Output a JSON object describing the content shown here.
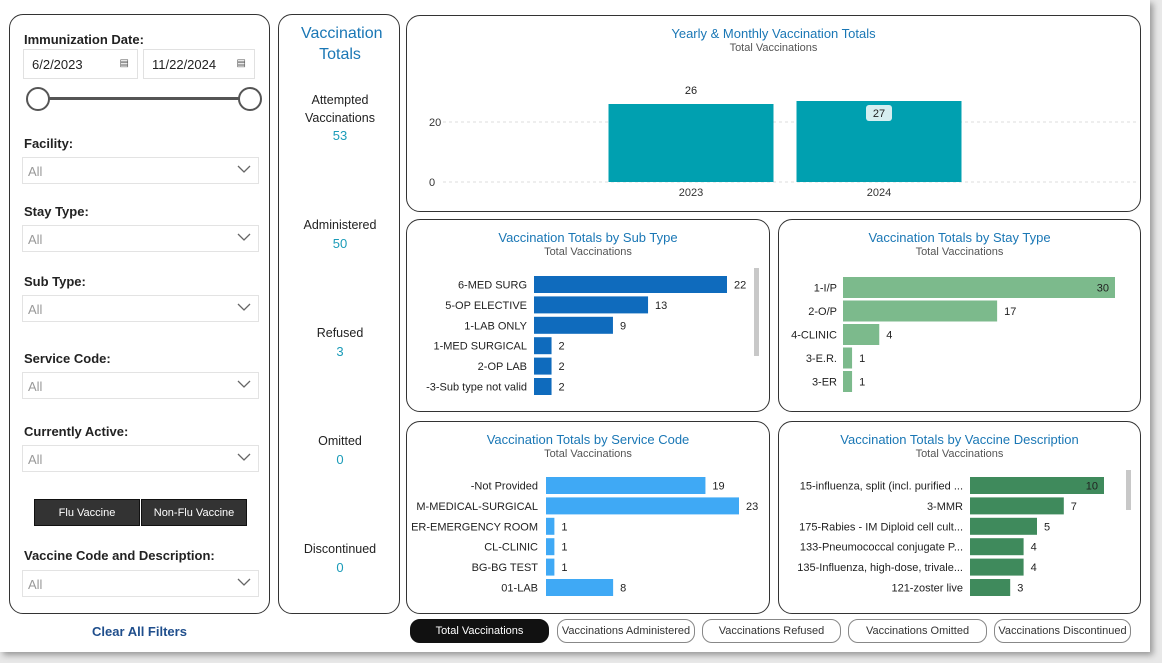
{
  "filters": {
    "immunization_date": {
      "label": "Immunization Date:",
      "start": "6/2/2023",
      "end": "11/22/2024"
    },
    "facility": {
      "label": "Facility:",
      "value": "All"
    },
    "stay_type": {
      "label": "Stay Type:",
      "value": "All"
    },
    "sub_type": {
      "label": "Sub Type:",
      "value": "All"
    },
    "service_code": {
      "label": "Service Code:",
      "value": "All"
    },
    "currently_active": {
      "label": "Currently Active:",
      "value": "All"
    },
    "flu_vaccine_label": "Flu Vaccine",
    "non_flu_vaccine_label": "Non-Flu Vaccine",
    "vaccine_code": {
      "label": "Vaccine Code and Description:",
      "value": "All"
    },
    "clear_all_label": "Clear All Filters"
  },
  "totals": {
    "title": "Vaccination Totals",
    "attempted": {
      "label": "Attempted Vaccinations",
      "value": "53"
    },
    "administered": {
      "label": "Administered",
      "value": "50"
    },
    "refused": {
      "label": "Refused",
      "value": "3"
    },
    "omitted": {
      "label": "Omitted",
      "value": "0"
    },
    "discontinued": {
      "label": "Discontinued",
      "value": "0"
    }
  },
  "tabs": [
    {
      "label": "Total Vaccinations",
      "active": true
    },
    {
      "label": "Vaccinations Administered",
      "active": false
    },
    {
      "label": "Vaccinations Refused",
      "active": false
    },
    {
      "label": "Vaccinations Omitted",
      "active": false
    },
    {
      "label": "Vaccinations Discontinued",
      "active": false
    }
  ],
  "chart_data": [
    {
      "type": "bar",
      "title": "Yearly & Monthly Vaccination Totals",
      "subtitle": "Total Vaccinations",
      "categories": [
        "2023",
        "2024"
      ],
      "values": [
        26,
        27
      ],
      "ylim": [
        0,
        30
      ],
      "yticks": [
        0,
        20
      ],
      "highlight_label": "27",
      "color": "#00a0b0"
    },
    {
      "type": "bar",
      "orientation": "horizontal",
      "title": "Vaccination Totals by Sub Type",
      "subtitle": "Total Vaccinations",
      "categories": [
        "6-MED SURG",
        "5-OP ELECTIVE",
        "1-LAB ONLY",
        "1-MED SURGICAL",
        "2-OP LAB",
        "-3-Sub type not valid"
      ],
      "values": [
        22,
        13,
        9,
        2,
        2,
        2
      ],
      "xmax": 22,
      "color": "#0f6bbd"
    },
    {
      "type": "bar",
      "orientation": "horizontal",
      "title": "Vaccination Totals by Stay Type",
      "subtitle": "Total Vaccinations",
      "categories": [
        "1-I/P",
        "2-O/P",
        "4-CLINIC",
        "3-E.R.",
        "3-ER"
      ],
      "values": [
        30,
        17,
        4,
        1,
        1
      ],
      "xmax": 30,
      "color": "#7cba8c"
    },
    {
      "type": "bar",
      "orientation": "horizontal",
      "title": "Vaccination Totals by Service Code",
      "subtitle": "Total Vaccinations",
      "categories": [
        "-Not Provided",
        "M-MEDICAL-SURGICAL",
        "ER-EMERGENCY ROOM",
        "CL-CLINIC",
        "BG-BG TEST",
        "01-LAB"
      ],
      "values": [
        19,
        23,
        1,
        1,
        1,
        8
      ],
      "xmax": 23,
      "color": "#3fa9f5"
    },
    {
      "type": "bar",
      "orientation": "horizontal",
      "title": "Vaccination Totals by Vaccine Description",
      "subtitle": "Total Vaccinations",
      "categories": [
        "15-influenza, split (incl. purified ...",
        "3-MMR",
        "175-Rabies - IM Diploid cell cult...",
        "133-Pneumococcal conjugate P...",
        "135-Influenza, high-dose, trivale...",
        "121-zoster live"
      ],
      "values": [
        10,
        7,
        5,
        4,
        4,
        3
      ],
      "xmax": 10,
      "color": "#3f8a5c"
    }
  ]
}
